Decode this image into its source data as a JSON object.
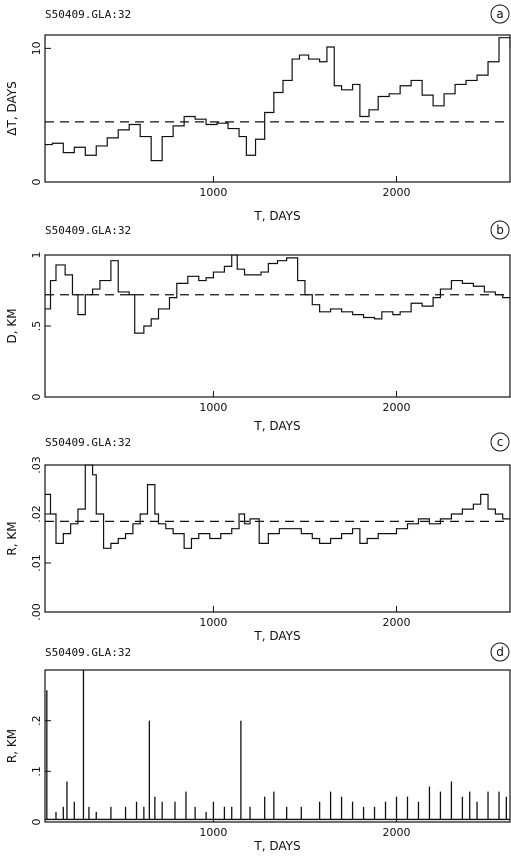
{
  "chart_data": [
    {
      "type": "line",
      "title": "S50409.GLA:32",
      "panel": "a",
      "xlabel": "T, DAYS",
      "ylabel": "ΔT, DAYS",
      "xlim": [
        80,
        2620
      ],
      "ylim": [
        0,
        11
      ],
      "xticks": [
        1000,
        2000
      ],
      "xtick_labels": [
        "1000",
        "2000"
      ],
      "yticks": [
        0,
        10
      ],
      "ytick_labels": [
        "0",
        "10"
      ],
      "reference_line": 4.5,
      "series": [
        {
          "step": true,
          "x": [
            80,
            120,
            180,
            240,
            300,
            360,
            420,
            480,
            540,
            600,
            660,
            720,
            780,
            840,
            900,
            960,
            1020,
            1080,
            1140,
            1180,
            1230,
            1280,
            1330,
            1380,
            1430,
            1470,
            1520,
            1580,
            1620,
            1660,
            1700,
            1760,
            1800,
            1850,
            1900,
            1960,
            2020,
            2080,
            2140,
            2200,
            2260,
            2320,
            2380,
            2440,
            2500,
            2560,
            2620
          ],
          "y": [
            2.8,
            2.9,
            2.2,
            2.6,
            2.0,
            2.7,
            3.3,
            3.9,
            4.3,
            3.4,
            1.6,
            3.4,
            4.2,
            4.9,
            4.7,
            4.3,
            4.4,
            4.0,
            3.4,
            2.0,
            3.2,
            5.2,
            6.7,
            7.6,
            9.2,
            9.5,
            9.2,
            9.0,
            10.1,
            7.2,
            6.9,
            7.3,
            4.9,
            5.4,
            6.4,
            6.6,
            7.2,
            7.6,
            6.5,
            5.7,
            6.6,
            7.3,
            7.6,
            8.0,
            9.0,
            10.8,
            10.0
          ]
        }
      ]
    },
    {
      "type": "line",
      "title": "S50409.GLA:32",
      "panel": "b",
      "xlabel": "T, DAYS",
      "ylabel": "D, KM",
      "xlim": [
        80,
        2620
      ],
      "ylim": [
        0,
        1.0
      ],
      "xticks": [
        1000,
        2000
      ],
      "xtick_labels": [
        "1000",
        "2000"
      ],
      "yticks": [
        0,
        0.5,
        1
      ],
      "ytick_labels": [
        "0",
        ".5",
        "1"
      ],
      "reference_line": 0.72,
      "series": [
        {
          "step": true,
          "x": [
            80,
            110,
            140,
            190,
            230,
            260,
            300,
            340,
            380,
            440,
            480,
            540,
            570,
            620,
            660,
            700,
            760,
            800,
            860,
            920,
            960,
            1000,
            1060,
            1100,
            1130,
            1170,
            1220,
            1260,
            1300,
            1350,
            1400,
            1460,
            1500,
            1540,
            1580,
            1640,
            1700,
            1760,
            1820,
            1880,
            1920,
            1980,
            2020,
            2080,
            2140,
            2200,
            2240,
            2300,
            2360,
            2420,
            2480,
            2540,
            2580,
            2620
          ],
          "y": [
            0.62,
            0.82,
            0.93,
            0.86,
            0.72,
            0.58,
            0.72,
            0.76,
            0.82,
            0.96,
            0.74,
            0.72,
            0.45,
            0.5,
            0.55,
            0.62,
            0.7,
            0.8,
            0.85,
            0.82,
            0.84,
            0.88,
            0.92,
            1.0,
            0.9,
            0.86,
            0.86,
            0.88,
            0.94,
            0.96,
            0.98,
            0.82,
            0.72,
            0.65,
            0.6,
            0.62,
            0.6,
            0.58,
            0.56,
            0.55,
            0.6,
            0.58,
            0.6,
            0.66,
            0.64,
            0.7,
            0.76,
            0.82,
            0.8,
            0.78,
            0.74,
            0.72,
            0.7,
            0.7
          ]
        }
      ]
    },
    {
      "type": "line",
      "title": "S50409.GLA:32",
      "panel": "c",
      "xlabel": "T, DAYS",
      "ylabel": "R, KM",
      "xlim": [
        80,
        2620
      ],
      "ylim": [
        0,
        0.03
      ],
      "xticks": [
        1000,
        2000
      ],
      "xtick_labels": [
        "1000",
        "2000"
      ],
      "yticks": [
        0,
        0.01,
        0.02,
        0.03
      ],
      "ytick_labels": [
        ".00",
        ".01",
        ".02",
        ".03"
      ],
      "reference_line": 0.0185,
      "series": [
        {
          "step": true,
          "x": [
            80,
            110,
            140,
            180,
            220,
            260,
            300,
            340,
            360,
            400,
            440,
            480,
            520,
            560,
            600,
            640,
            680,
            700,
            740,
            780,
            840,
            880,
            920,
            980,
            1040,
            1100,
            1140,
            1170,
            1200,
            1250,
            1300,
            1360,
            1420,
            1480,
            1540,
            1580,
            1640,
            1700,
            1760,
            1800,
            1840,
            1900,
            1960,
            2000,
            2060,
            2120,
            2180,
            2240,
            2300,
            2360,
            2420,
            2460,
            2500,
            2540,
            2580,
            2620
          ],
          "y": [
            0.024,
            0.02,
            0.014,
            0.016,
            0.018,
            0.021,
            0.03,
            0.028,
            0.02,
            0.013,
            0.014,
            0.015,
            0.016,
            0.018,
            0.02,
            0.026,
            0.02,
            0.018,
            0.017,
            0.016,
            0.013,
            0.015,
            0.016,
            0.015,
            0.016,
            0.017,
            0.02,
            0.018,
            0.019,
            0.014,
            0.016,
            0.017,
            0.017,
            0.016,
            0.015,
            0.014,
            0.015,
            0.016,
            0.017,
            0.014,
            0.015,
            0.016,
            0.016,
            0.017,
            0.018,
            0.019,
            0.018,
            0.019,
            0.02,
            0.021,
            0.022,
            0.024,
            0.021,
            0.02,
            0.019,
            0.019
          ]
        }
      ]
    },
    {
      "type": "line",
      "title": "S50409.GLA:32",
      "panel": "d",
      "xlabel": "T, DAYS",
      "ylabel": "R, KM",
      "xlim": [
        80,
        2620
      ],
      "ylim": [
        0,
        0.3
      ],
      "xticks": [
        1000,
        2000
      ],
      "xtick_labels": [
        "1000",
        "2000"
      ],
      "yticks": [
        0,
        0.1,
        0.2
      ],
      "ytick_labels": [
        "0",
        ".1",
        ".2"
      ],
      "baseline": 0.005,
      "spikes": [
        {
          "x": 90,
          "y": 0.26
        },
        {
          "x": 140,
          "y": 0.02
        },
        {
          "x": 180,
          "y": 0.03
        },
        {
          "x": 200,
          "y": 0.08
        },
        {
          "x": 240,
          "y": 0.04
        },
        {
          "x": 290,
          "y": 0.3
        },
        {
          "x": 320,
          "y": 0.03
        },
        {
          "x": 360,
          "y": 0.02
        },
        {
          "x": 440,
          "y": 0.03
        },
        {
          "x": 520,
          "y": 0.03
        },
        {
          "x": 580,
          "y": 0.04
        },
        {
          "x": 620,
          "y": 0.03
        },
        {
          "x": 650,
          "y": 0.2
        },
        {
          "x": 680,
          "y": 0.05
        },
        {
          "x": 720,
          "y": 0.04
        },
        {
          "x": 790,
          "y": 0.04
        },
        {
          "x": 850,
          "y": 0.06
        },
        {
          "x": 900,
          "y": 0.03
        },
        {
          "x": 960,
          "y": 0.02
        },
        {
          "x": 1000,
          "y": 0.04
        },
        {
          "x": 1060,
          "y": 0.03
        },
        {
          "x": 1100,
          "y": 0.03
        },
        {
          "x": 1150,
          "y": 0.2
        },
        {
          "x": 1200,
          "y": 0.03
        },
        {
          "x": 1280,
          "y": 0.05
        },
        {
          "x": 1330,
          "y": 0.06
        },
        {
          "x": 1400,
          "y": 0.03
        },
        {
          "x": 1480,
          "y": 0.03
        },
        {
          "x": 1580,
          "y": 0.04
        },
        {
          "x": 1640,
          "y": 0.06
        },
        {
          "x": 1700,
          "y": 0.05
        },
        {
          "x": 1760,
          "y": 0.04
        },
        {
          "x": 1820,
          "y": 0.03
        },
        {
          "x": 1880,
          "y": 0.03
        },
        {
          "x": 1940,
          "y": 0.04
        },
        {
          "x": 2000,
          "y": 0.05
        },
        {
          "x": 2060,
          "y": 0.05
        },
        {
          "x": 2120,
          "y": 0.04
        },
        {
          "x": 2180,
          "y": 0.07
        },
        {
          "x": 2240,
          "y": 0.06
        },
        {
          "x": 2300,
          "y": 0.08
        },
        {
          "x": 2360,
          "y": 0.05
        },
        {
          "x": 2400,
          "y": 0.06
        },
        {
          "x": 2440,
          "y": 0.04
        },
        {
          "x": 2500,
          "y": 0.06
        },
        {
          "x": 2560,
          "y": 0.06
        },
        {
          "x": 2600,
          "y": 0.05
        }
      ]
    }
  ]
}
